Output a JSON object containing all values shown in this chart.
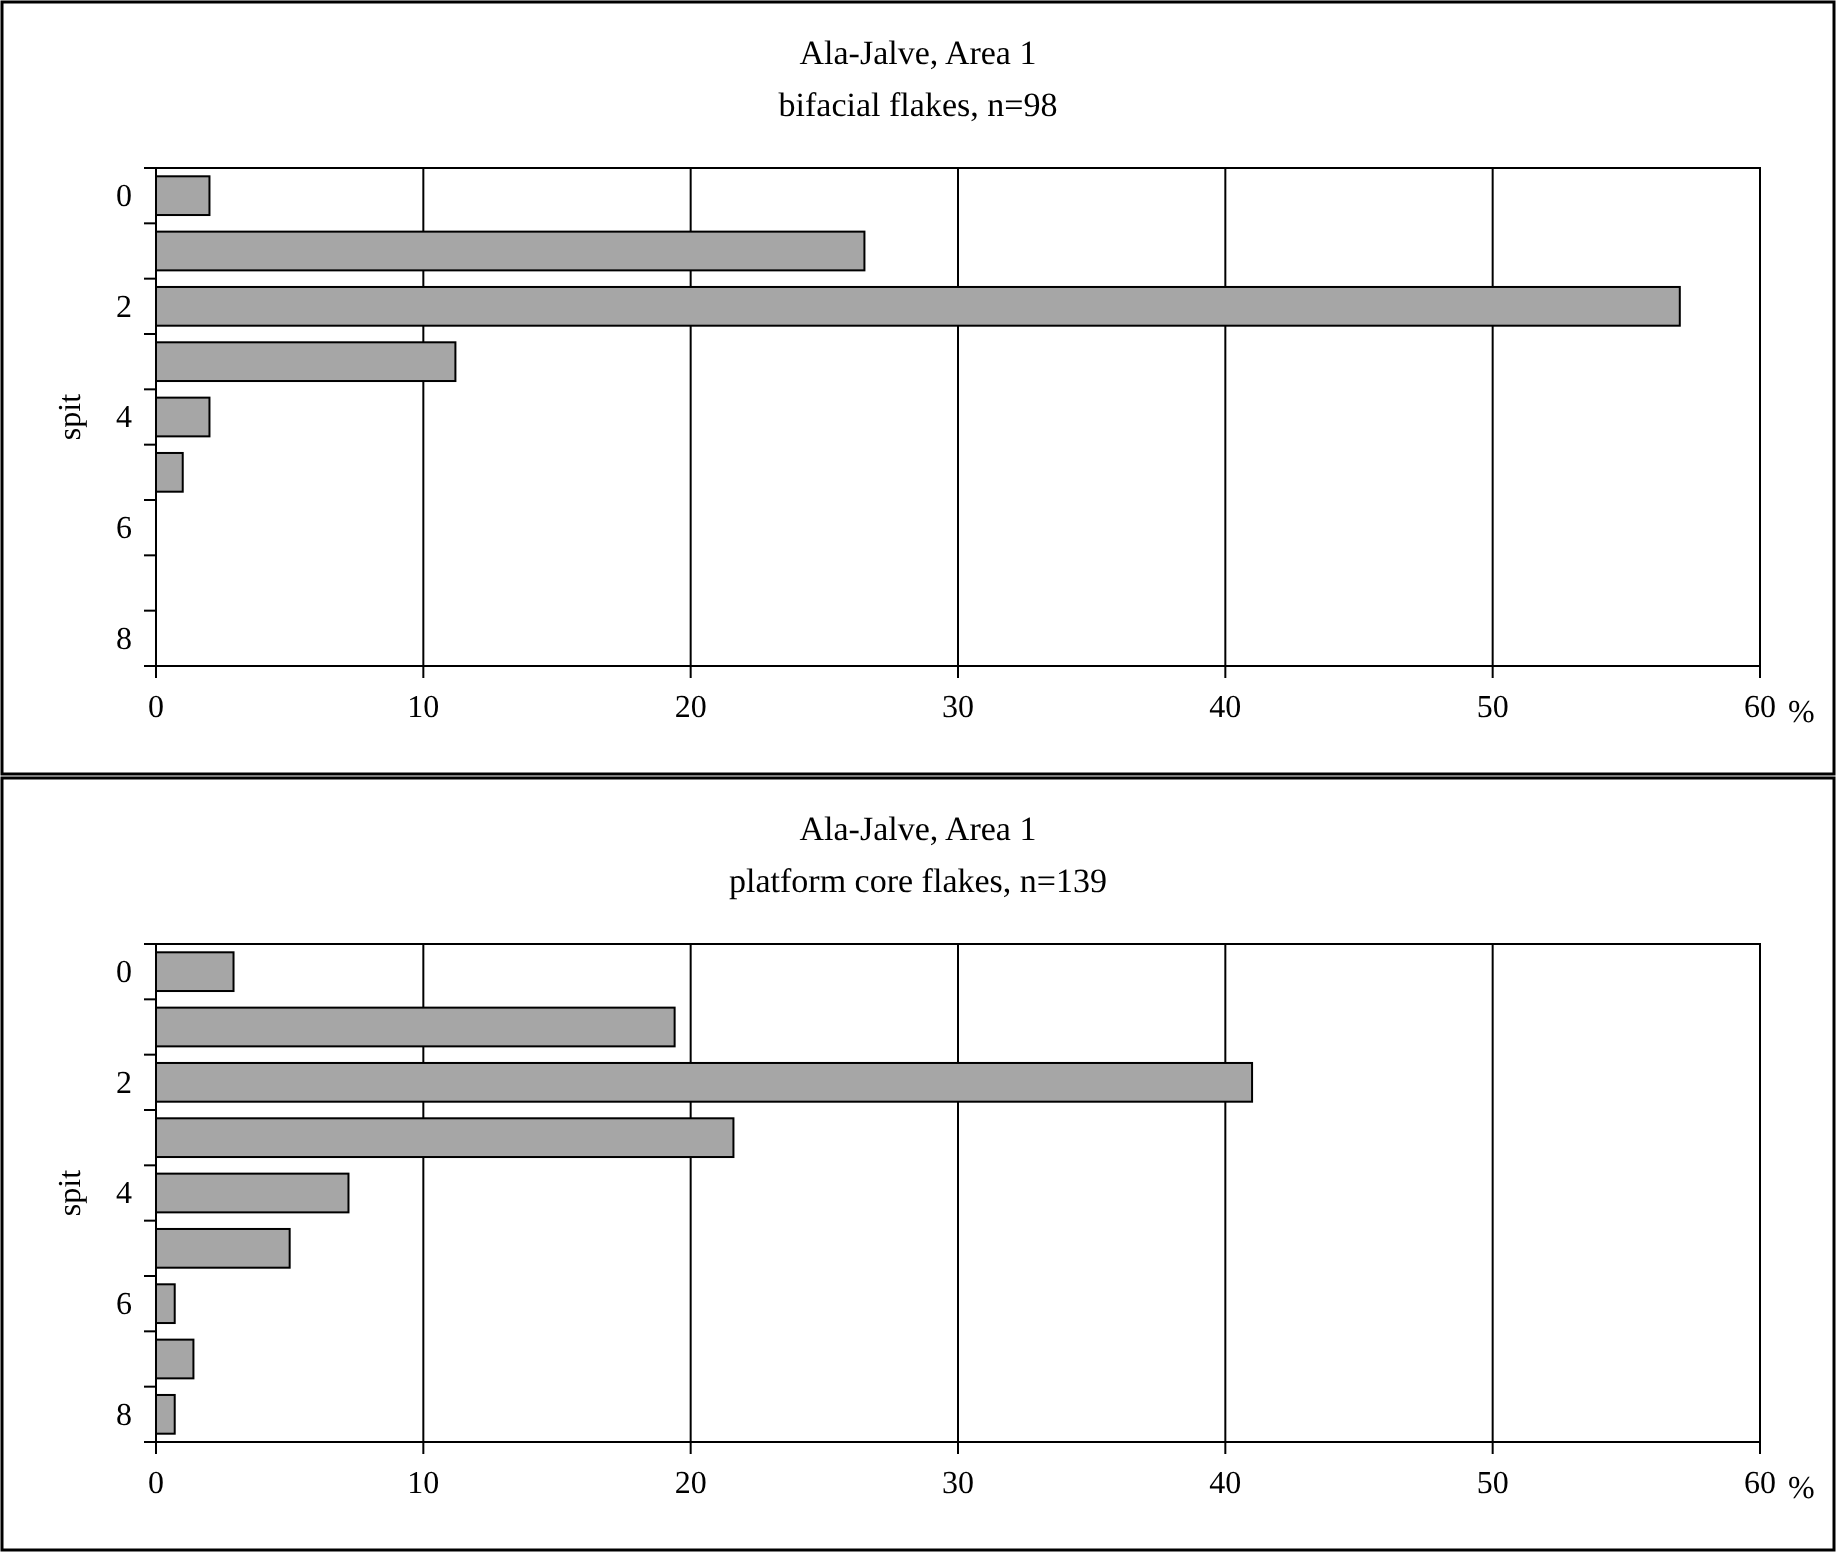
{
  "chart_data": [
    {
      "type": "bar",
      "orientation": "horizontal",
      "title": "Ala-Jalve, Area 1",
      "subtitle": "bifacial flakes, n=98",
      "ylabel": "spit",
      "xlabel": "%",
      "categories": [
        "0",
        null,
        "2",
        null,
        "4",
        null,
        "6",
        null,
        "8"
      ],
      "series": [
        {
          "color": "#a6a6a6",
          "values": [
            2.0,
            26.5,
            57.0,
            11.2,
            2.0,
            1.0,
            null,
            null,
            null
          ]
        }
      ],
      "xlim": [
        0,
        60
      ],
      "xticks": [
        0,
        10,
        20,
        30,
        40,
        50,
        60
      ],
      "grid": "x"
    },
    {
      "type": "bar",
      "orientation": "horizontal",
      "title": "Ala-Jalve, Area 1",
      "subtitle": "platform core flakes, n=139",
      "ylabel": "spit",
      "xlabel": "%",
      "categories": [
        "0",
        null,
        "2",
        null,
        "4",
        null,
        "6",
        null,
        "8"
      ],
      "series": [
        {
          "color": "#a6a6a6",
          "values": [
            2.9,
            19.4,
            41.0,
            21.6,
            7.2,
            5.0,
            0.7,
            1.4,
            0.7
          ]
        }
      ],
      "xlim": [
        0,
        60
      ],
      "xticks": [
        0,
        10,
        20,
        30,
        40,
        50,
        60
      ],
      "grid": "x"
    }
  ]
}
